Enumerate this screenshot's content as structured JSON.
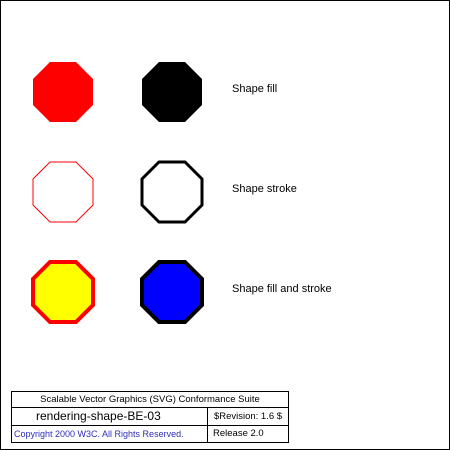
{
  "rows": [
    {
      "label": "Shape fill"
    },
    {
      "label": "Shape stroke"
    },
    {
      "label": "Shape fill and stroke"
    }
  ],
  "colors": {
    "red": "#ff0000",
    "black": "#000000",
    "white": "#ffffff",
    "yellow": "#ffff00",
    "blue": "#0000ff",
    "copyright_text": "#2e2eb8"
  },
  "shapes": {
    "fill_red": {
      "fill": "#ff0000",
      "stroke": "none"
    },
    "fill_black": {
      "fill": "#000000",
      "stroke": "none"
    },
    "stroke_red": {
      "fill": "none",
      "stroke": "#ff0000"
    },
    "stroke_black": {
      "fill": "none",
      "stroke": "#000000"
    },
    "both_yellow_red": {
      "fill": "#ffff00",
      "stroke": "#ff0000"
    },
    "both_blue_black": {
      "fill": "#0000ff",
      "stroke": "#000000"
    }
  },
  "legend": {
    "suite_title": "Scalable Vector Graphics (SVG) Conformance Suite",
    "test_name": "rendering-shape-BE-03",
    "revision": "$Revision: 1.6 $",
    "copyright": "Copyright 2000 W3C. All Rights Reserved.",
    "release": "Release 2.0"
  }
}
